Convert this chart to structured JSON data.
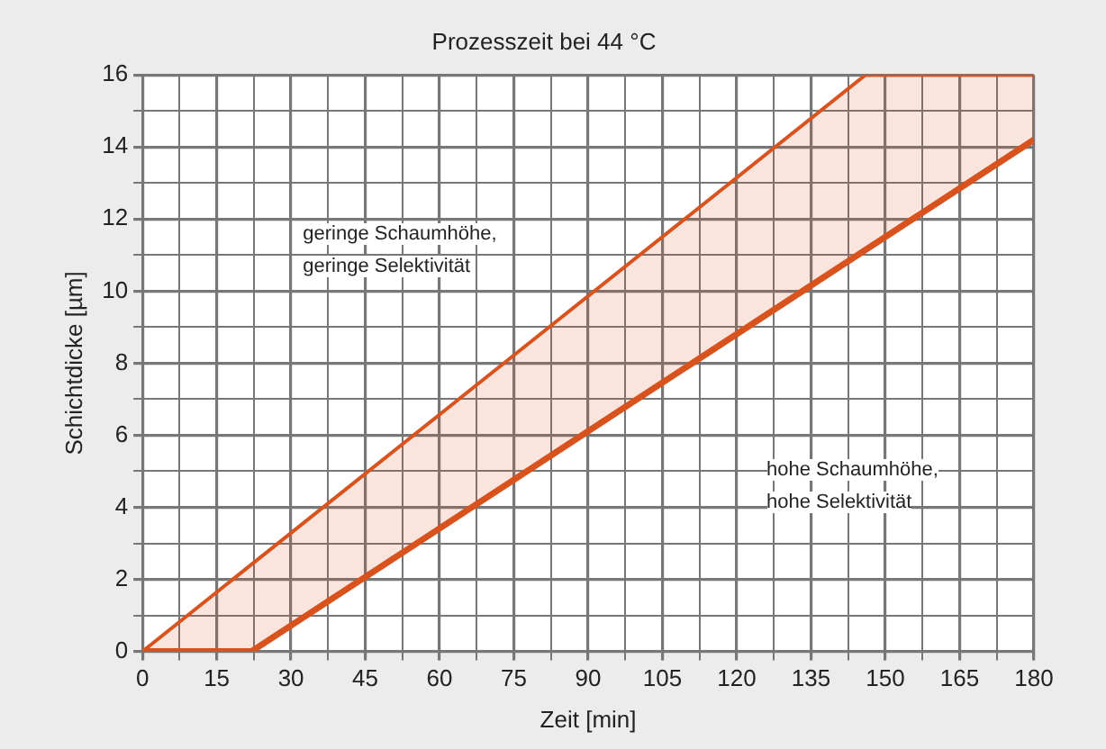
{
  "chart_data": {
    "type": "line",
    "title": "Prozesszeit bei 44 °C",
    "xlabel": "Zeit [min]",
    "ylabel": "Schichtdicke [µm]",
    "annotations": [
      "geringe Schaumhöhe,\ngeringe Selektivität",
      "hohe Schaumhöhe,\nhohe Selektivität"
    ],
    "series": [
      {
        "type": "area",
        "color": "#d9531e",
        "x": [
          0,
          146,
          180
        ],
        "values": [
          0,
          16,
          16
        ]
      },
      {
        "type": "line",
        "color": "#d9531e",
        "x": [
          0,
          22,
          180
        ],
        "values": [
          0,
          0,
          14.2
        ]
      }
    ],
    "xlim": [
      0,
      180
    ],
    "xticks": [
      0,
      {
        "value": 7.5,
        "label": null
      },
      15,
      {
        "value": 22.5,
        "label": null
      },
      30,
      {
        "value": 37.5,
        "label": null
      },
      45,
      {
        "value": 52.5,
        "label": null
      },
      60,
      {
        "value": 67.5,
        "label": null
      },
      75,
      {
        "value": 82.5,
        "label": null
      },
      90,
      {
        "value": 97.5,
        "label": null
      },
      105,
      {
        "value": 112.5,
        "label": null
      },
      120,
      {
        "value": 127.5,
        "label": null
      },
      135,
      {
        "value": 142.5,
        "label": null
      },
      150,
      {
        "value": 157.5,
        "label": null
      },
      165,
      {
        "value": 172.5,
        "label": null
      },
      180
    ],
    "ylim": [
      0,
      16
    ],
    "yticks": [
      0,
      {
        "value": 1,
        "label": null
      },
      2,
      {
        "value": 3,
        "label": null
      },
      4,
      {
        "value": 5,
        "label": null
      },
      6,
      {
        "value": 7,
        "label": null
      },
      8,
      {
        "value": 9,
        "label": null
      },
      10,
      {
        "value": 11,
        "label": null
      },
      12,
      {
        "value": 13,
        "label": null
      },
      14,
      {
        "value": 15,
        "label": null
      },
      16
    ],
    "grid": true,
    "legend": false,
    "marker": "none",
    "line_style": "solid"
  }
}
